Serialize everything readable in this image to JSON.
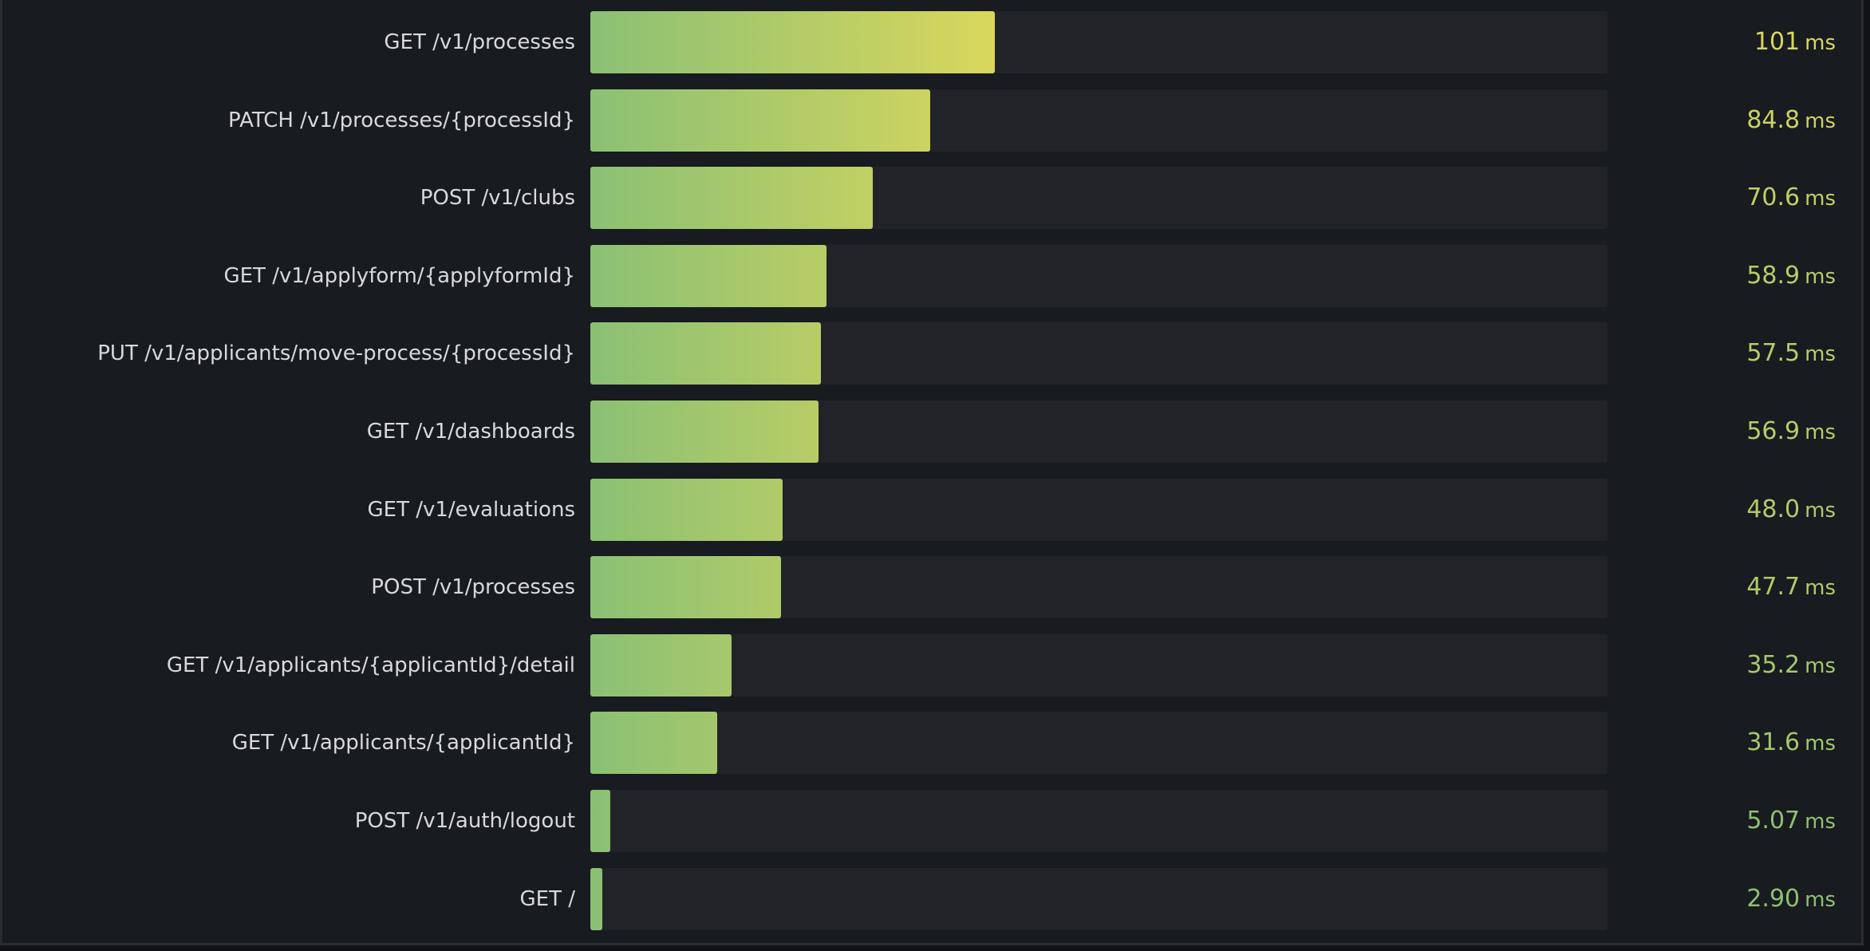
{
  "chart_data": {
    "type": "bar",
    "orientation": "horizontal",
    "unit": "ms",
    "xlim": [
      0,
      254
    ],
    "color_low": "#8ac074",
    "color_high": "#d9d75c",
    "series": [
      {
        "label_decimals": "auto",
        "items": [
          {
            "category": "GET /v1/processes",
            "value": 101,
            "display": "101"
          },
          {
            "category": "PATCH /v1/processes/{processId}",
            "value": 84.8,
            "display": "84.8"
          },
          {
            "category": "POST /v1/clubs",
            "value": 70.6,
            "display": "70.6"
          },
          {
            "category": "GET /v1/applyform/{applyformId}",
            "value": 58.9,
            "display": "58.9"
          },
          {
            "category": "PUT /v1/applicants/move-process/{processId}",
            "value": 57.5,
            "display": "57.5"
          },
          {
            "category": "GET /v1/dashboards",
            "value": 56.9,
            "display": "56.9"
          },
          {
            "category": "GET /v1/evaluations",
            "value": 48.0,
            "display": "48.0"
          },
          {
            "category": "POST /v1/processes",
            "value": 47.7,
            "display": "47.7"
          },
          {
            "category": "GET /v1/applicants/{applicantId}/detail",
            "value": 35.2,
            "display": "35.2"
          },
          {
            "category": "GET /v1/applicants/{applicantId}",
            "value": 31.6,
            "display": "31.6"
          },
          {
            "category": "POST /v1/auth/logout",
            "value": 5.07,
            "display": "5.07"
          },
          {
            "category": "GET /",
            "value": 2.9,
            "display": "2.90"
          }
        ]
      }
    ]
  }
}
